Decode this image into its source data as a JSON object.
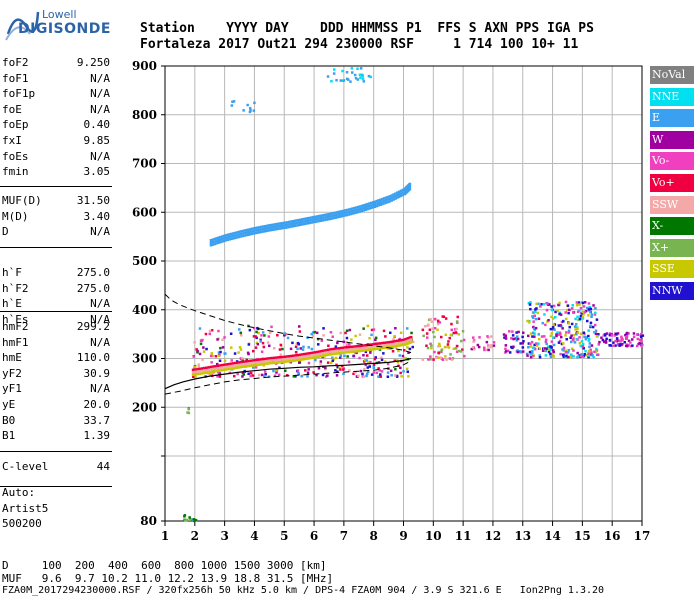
{
  "logo": {
    "line1": "Lowell",
    "line2": "DIGISONDE"
  },
  "header": {
    "labels_row": "Station    YYYY DAY    DDD HHMMSS P1  FFS S AXN PPS IGA PS",
    "values_row": "Fortaleza 2017 Out21 294 230000 RSF     1 714 100 10+ 11"
  },
  "params": {
    "group1": [
      {
        "label": "foF2",
        "value": "9.250"
      },
      {
        "label": "foF1",
        "value": "N/A"
      },
      {
        "label": "foF1p",
        "value": "N/A"
      },
      {
        "label": "foE",
        "value": "N/A"
      },
      {
        "label": "foEp",
        "value": "0.40"
      },
      {
        "label": "fxI",
        "value": "9.85"
      },
      {
        "label": "foEs",
        "value": "N/A"
      },
      {
        "label": "fmin",
        "value": "3.05"
      }
    ],
    "group2": [
      {
        "label": "MUF(D)",
        "value": "31.50"
      },
      {
        "label": "M(D)",
        "value": "3.40"
      },
      {
        "label": "D",
        "value": "N/A"
      }
    ],
    "group3": [
      {
        "label": "h`F",
        "value": "275.0"
      },
      {
        "label": "h`F2",
        "value": "275.0"
      },
      {
        "label": "h`E",
        "value": "N/A"
      },
      {
        "label": "h`Es",
        "value": "N/A"
      }
    ],
    "group4": [
      {
        "label": "hmF2",
        "value": "299.2"
      },
      {
        "label": "hmF1",
        "value": "N/A"
      },
      {
        "label": "hmE",
        "value": "110.0"
      },
      {
        "label": "yF2",
        "value": "30.9"
      },
      {
        "label": "yF1",
        "value": "N/A"
      },
      {
        "label": "yE",
        "value": "20.0"
      },
      {
        "label": "B0",
        "value": "33.7"
      },
      {
        "label": "B1",
        "value": "1.39"
      }
    ],
    "clevel": {
      "label": "C-level",
      "value": "44"
    },
    "auto": [
      "Auto:",
      "Artist5",
      "500200"
    ]
  },
  "legend": [
    {
      "label": "NoVal",
      "color": "#808080"
    },
    {
      "label": "NNE",
      "color": "#00e0f0"
    },
    {
      "label": "E",
      "color": "#3ca0f0"
    },
    {
      "label": "W",
      "color": "#a000a0"
    },
    {
      "label": "Vo-",
      "color": "#f040c0"
    },
    {
      "label": "Vo+",
      "color": "#f00040"
    },
    {
      "label": "SSW",
      "color": "#f4a8a8"
    },
    {
      "label": "X-",
      "color": "#007800"
    },
    {
      "label": "X+",
      "color": "#78b450"
    },
    {
      "label": "SSE",
      "color": "#c8c800"
    },
    {
      "label": "NNW",
      "color": "#2010d0"
    }
  ],
  "footer": {
    "line1": "D     100  200  400  600  800 1000 1500 3000 [km]",
    "line2": "MUF   9.6  9.7 10.2 11.0 12.2 13.9 18.8 31.5 [MHz]",
    "line3": "FZA0M_2017294230000.RSF / 320fx256h 50 kHz 5.0 km / DPS-4 FZA0M 904 / 3.9 S 321.6 E   Ion2Png 1.3.20"
  },
  "chart_data": {
    "type": "scatter",
    "xlim": [
      1,
      17
    ],
    "ylim": [
      80,
      900
    ],
    "x_ticks": [
      1,
      2,
      3,
      4,
      5,
      6,
      7,
      8,
      9,
      10,
      11,
      12,
      13,
      14,
      15,
      16,
      17
    ],
    "y_ticks": [
      80,
      100,
      200,
      300,
      400,
      500,
      600,
      700,
      800,
      900
    ],
    "y_tick_labels": [
      "80",
      "",
      "200",
      "300",
      "400",
      "500",
      "600",
      "700",
      "800",
      "900"
    ],
    "grid": true,
    "traces": [
      {
        "name": "F2 trace",
        "x": [
          1.9,
          2.5,
          3.0,
          3.5,
          4.0,
          4.5,
          5.0,
          5.5,
          6.0,
          6.5,
          7.0,
          7.5,
          8.0,
          8.5,
          9.0,
          9.25
        ],
        "y": [
          272,
          278,
          283,
          288,
          292,
          296,
          299,
          303,
          308,
          314,
          318,
          321,
          325,
          329,
          334,
          340
        ]
      },
      {
        "name": "E echo 2nd hop",
        "x": [
          2.5,
          3.0,
          3.5,
          4.0,
          4.5,
          5.0,
          5.5,
          6.0,
          6.5,
          7.0,
          7.5,
          8.0,
          8.5,
          9.0,
          9.2
        ],
        "y": [
          538,
          548,
          556,
          563,
          569,
          574,
          580,
          586,
          592,
          599,
          607,
          617,
          628,
          643,
          655
        ]
      }
    ],
    "profile_curve": {
      "x": [
        1.0,
        1.3,
        1.6,
        2.0,
        2.5,
        3.0,
        3.5,
        4.0,
        4.5,
        5.0,
        5.5,
        6.0,
        6.5,
        7.0,
        7.5,
        8.0,
        8.5,
        9.0,
        9.25
      ],
      "y": [
        238,
        246,
        252,
        258,
        264,
        268,
        272,
        275,
        278,
        280,
        282,
        283,
        285,
        286,
        288,
        290,
        292,
        296,
        300
      ]
    },
    "envelope_upper": {
      "x": [
        1.0,
        1.2,
        1.5,
        2.0,
        2.5,
        3.0,
        3.5,
        4.0,
        4.5,
        5.0,
        5.5,
        6.0,
        6.5,
        7.0,
        7.5,
        8.0,
        8.5,
        9.0,
        9.25
      ],
      "y": [
        432,
        420,
        410,
        398,
        388,
        378,
        370,
        363,
        357,
        351,
        346,
        342,
        338,
        334,
        330,
        326,
        322,
        317,
        312
      ]
    },
    "envelope_lower": {
      "x": [
        1.0,
        1.5,
        2.0,
        2.5,
        3.0,
        3.5,
        4.0,
        4.5,
        5.0,
        5.5,
        6.0,
        6.5,
        7.0,
        7.5,
        8.0,
        8.5,
        9.0,
        9.25
      ],
      "y": [
        227,
        233,
        240,
        246,
        252,
        256,
        259,
        262,
        264,
        266,
        268,
        270,
        272,
        274,
        276,
        280,
        287,
        295
      ]
    },
    "clusters": [
      {
        "x": [
          1.9,
          9.3
        ],
        "y": [
          265,
          370
        ],
        "n": 420,
        "colors": [
          "#f00040",
          "#f040c0",
          "#f4a8a8",
          "#c8c800",
          "#3ca0f0",
          "#2010d0",
          "#007800",
          "#a000a0"
        ]
      },
      {
        "x": [
          9.6,
          11.0
        ],
        "y": [
          300,
          390
        ],
        "n": 90,
        "colors": [
          "#f4a8a8",
          "#f00040",
          "#c8c800",
          "#f040c0",
          "#78b450"
        ]
      },
      {
        "x": [
          11.2,
          12.0
        ],
        "y": [
          320,
          350
        ],
        "n": 25,
        "colors": [
          "#f4a8a8",
          "#f040c0",
          "#a000a0"
        ]
      },
      {
        "x": [
          12.3,
          13.0
        ],
        "y": [
          315,
          360
        ],
        "n": 40,
        "colors": [
          "#2010d0",
          "#a000a0",
          "#3ca0f0",
          "#f040c0"
        ]
      },
      {
        "x": [
          13.1,
          15.5
        ],
        "y": [
          305,
          420
        ],
        "n": 320,
        "colors": [
          "#2010d0",
          "#a000a0",
          "#3ca0f0",
          "#f040c0",
          "#00e0f0",
          "#c8c800"
        ]
      },
      {
        "x": [
          15.5,
          17.0
        ],
        "y": [
          328,
          355
        ],
        "n": 80,
        "colors": [
          "#a000a0",
          "#f040c0",
          "#2010d0"
        ]
      },
      {
        "x": [
          6.4,
          7.9
        ],
        "y": [
          870,
          900
        ],
        "n": 30,
        "colors": [
          "#3ca0f0",
          "#00e0f0"
        ]
      },
      {
        "x": [
          3.2,
          4.0
        ],
        "y": [
          808,
          832
        ],
        "n": 10,
        "colors": [
          "#3ca0f0"
        ]
      },
      {
        "x": [
          1.6,
          2.0
        ],
        "y": [
          82,
          92
        ],
        "n": 14,
        "colors": [
          "#007800",
          "#3ca0f0",
          "#78b450"
        ]
      },
      {
        "x": [
          1.7,
          1.8
        ],
        "y": [
          190,
          200
        ],
        "n": 4,
        "colors": [
          "#007800",
          "#78b450"
        ]
      }
    ]
  }
}
